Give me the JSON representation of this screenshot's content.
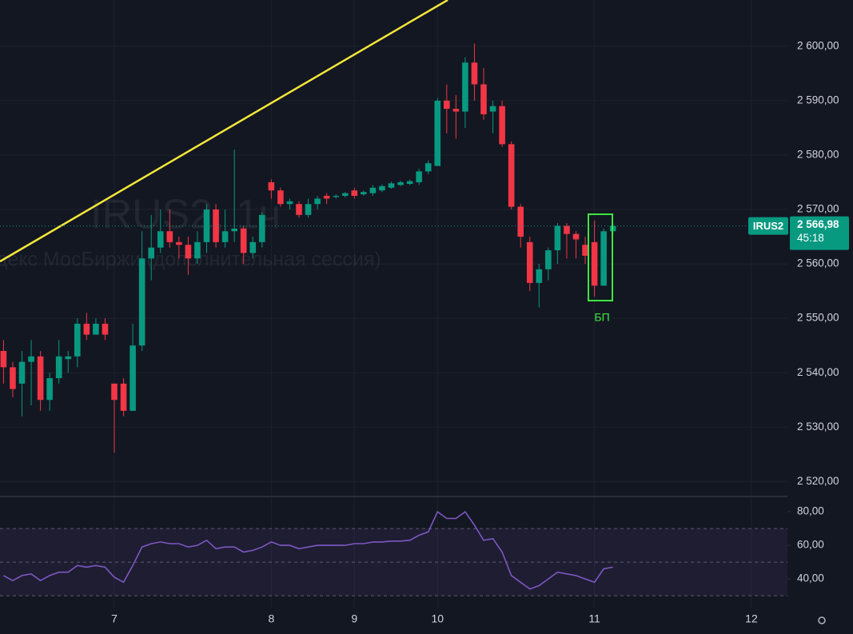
{
  "chart_data": [
    {
      "type": "candlestick",
      "watermark_title": "IRUS2, 1ч",
      "watermark_subtitle": "Индекс МосБиржи (дополнительная сессия)",
      "symbol": "IRUS2",
      "last_price": {
        "value": 2566.98,
        "label": "2 566,98"
      },
      "countdown": "45:18",
      "annotation": "БП",
      "up_color": "#089981",
      "down_color": "#f23645",
      "ylim": [
        2517.4,
        2608.5
      ],
      "yticks": [
        {
          "value": 2600,
          "label": "2 600,00"
        },
        {
          "value": 2590,
          "label": "2 590,00"
        },
        {
          "value": 2580,
          "label": "2 580,00"
        },
        {
          "value": 2570,
          "label": "2 570,00"
        },
        {
          "value": 2560,
          "label": "2 560,00"
        },
        {
          "value": 2550,
          "label": "2 550,00"
        },
        {
          "value": 2540,
          "label": "2 540,00"
        },
        {
          "value": 2530,
          "label": "2 530,00"
        },
        {
          "value": 2520,
          "label": "2 520,00"
        }
      ],
      "grid": true,
      "categories": [
        null,
        null,
        null,
        null,
        null,
        null,
        null,
        null,
        null,
        null,
        null,
        null,
        "7",
        null,
        null,
        null,
        null,
        null,
        null,
        null,
        null,
        null,
        null,
        null,
        null,
        null,
        null,
        null,
        null,
        "8",
        null,
        null,
        null,
        null,
        null,
        null,
        null,
        null,
        "9",
        null,
        null,
        null,
        null,
        null,
        null,
        null,
        null,
        "10",
        null,
        null,
        null,
        null,
        null,
        null,
        null,
        null,
        null,
        null,
        null,
        null,
        null,
        null,
        null,
        null,
        "11",
        null,
        null,
        null,
        null,
        null,
        null,
        null,
        null,
        null,
        null,
        null,
        null,
        null,
        null,
        null,
        null,
        "12"
      ],
      "open": [
        2544,
        2541,
        2538,
        2542,
        2543,
        2535,
        2539,
        2542.5,
        2543,
        2549,
        2547,
        2549,
        2538,
        2538,
        2533,
        2545,
        2561,
        2563,
        2566,
        2564,
        2563.5,
        2561,
        2564,
        2570,
        2564,
        2566,
        2566.5,
        2562,
        2564,
        2575,
        2573.5,
        2571,
        2571,
        2569,
        2571,
        2572.5,
        2572.3,
        2572.5,
        2573.5,
        2572.8,
        2573,
        2573.5,
        2574,
        2574.5,
        2574.7,
        2575,
        2577,
        2578,
        2590,
        2588.5,
        2588,
        2597,
        2593,
        2588,
        2589,
        2582,
        2570.5,
        2564,
        2556.5,
        2559,
        2562.5,
        2567,
        2565.5,
        2563.5,
        2564,
        2556,
        2566,
        null,
        null,
        null,
        null,
        null,
        null,
        null,
        null,
        null,
        null,
        null,
        null,
        null,
        null,
        null
      ],
      "high": [
        2546,
        2542,
        2544,
        2546,
        2544,
        2540,
        2546,
        2544,
        2550,
        2551,
        2550,
        2550,
        2538,
        2539,
        2549,
        2566,
        2569,
        2570,
        2570,
        2565,
        2565,
        2566,
        2571,
        2571,
        2570,
        2581,
        2567,
        2565,
        2569.5,
        2575.5,
        2574,
        2572,
        2571.5,
        2572,
        2572.5,
        2573,
        2572.8,
        2573.2,
        2574,
        2573.5,
        2574.5,
        2574.6,
        2575.1,
        2575.3,
        2575.5,
        2577.5,
        2579,
        2590.5,
        2593,
        2591,
        2598,
        2600.5,
        2596,
        2590,
        2590,
        2582.5,
        2571,
        2565,
        2560,
        2563,
        2567.5,
        2567.5,
        2566,
        2565,
        2568,
        2566.5,
        2567.5,
        null,
        null,
        null,
        null,
        null,
        null,
        null,
        null,
        null,
        null,
        null,
        null,
        null,
        null,
        null
      ],
      "low": [
        2538,
        2535.5,
        2532,
        2534,
        2533,
        2533,
        2538,
        2540,
        2541,
        2546,
        2547,
        2546,
        2525.3,
        2532,
        2533,
        2544,
        2557,
        2562,
        2563,
        2561,
        2558,
        2560,
        2562,
        2563,
        2563,
        2564,
        2560,
        2561,
        2563,
        2572,
        2570.5,
        2570,
        2568.5,
        2568.5,
        2570,
        2571,
        2572,
        2572.2,
        2572,
        2572.5,
        2572.5,
        2573.2,
        2573.8,
        2574.3,
        2574.5,
        2574.5,
        2576.5,
        2578,
        2584,
        2583,
        2585,
        2590,
        2586.5,
        2584,
        2581.5,
        2570,
        2563,
        2555,
        2552,
        2557,
        2560,
        2561,
        2561,
        2560,
        2554,
        2556,
        2565.5,
        null,
        null,
        null,
        null,
        null,
        null,
        null,
        null,
        null,
        null,
        null,
        null,
        null,
        null,
        null
      ],
      "close": [
        2541,
        2537,
        2542,
        2543,
        2535,
        2539,
        2543,
        2543,
        2549,
        2547,
        2549,
        2547,
        2535,
        2533,
        2545,
        2561,
        2563,
        2566,
        2564,
        2563.5,
        2561,
        2564,
        2570,
        2564,
        2566,
        2566.5,
        2562,
        2564,
        2569,
        2573.5,
        2571,
        2571.5,
        2569,
        2571,
        2572,
        2572,
        2572.5,
        2573,
        2572.5,
        2573.2,
        2574,
        2574.3,
        2574.8,
        2575,
        2575.2,
        2577,
        2578.5,
        2590,
        2588.5,
        2588,
        2597,
        2593,
        2587.5,
        2589,
        2582,
        2570.5,
        2565,
        2556.5,
        2559,
        2562.5,
        2567,
        2565.5,
        2564.5,
        2561.5,
        2556,
        2566,
        2566.98,
        null,
        null,
        null,
        null,
        null,
        null,
        null,
        null,
        null,
        null,
        null,
        null,
        null,
        null,
        null
      ]
    },
    {
      "type": "line",
      "color": "#7e57c2",
      "ylim": [
        22.9,
        88.6
      ],
      "yticks": [
        {
          "value": 80,
          "label": "80,00"
        },
        {
          "value": 60,
          "label": "60,00"
        },
        {
          "value": 40,
          "label": "40,00"
        }
      ],
      "band": [
        30,
        70
      ],
      "midline": 50,
      "values": [
        42,
        39,
        42,
        43,
        39,
        42,
        44,
        44,
        48,
        47,
        48,
        47,
        41,
        38,
        48,
        59,
        61,
        62,
        61,
        61,
        59,
        60,
        63,
        58,
        59,
        59,
        56,
        57,
        59,
        62,
        60,
        60,
        58,
        59,
        60,
        60,
        60,
        60,
        61,
        61,
        62,
        62,
        62.5,
        62.5,
        63,
        66,
        68,
        80,
        76,
        76,
        80,
        72,
        63,
        64,
        56,
        42,
        38,
        34,
        36,
        40,
        44,
        43,
        42,
        40,
        38,
        46,
        47,
        null,
        null,
        null,
        null,
        null,
        null,
        null,
        null,
        null,
        null,
        null,
        null,
        null,
        null,
        null
      ]
    }
  ]
}
